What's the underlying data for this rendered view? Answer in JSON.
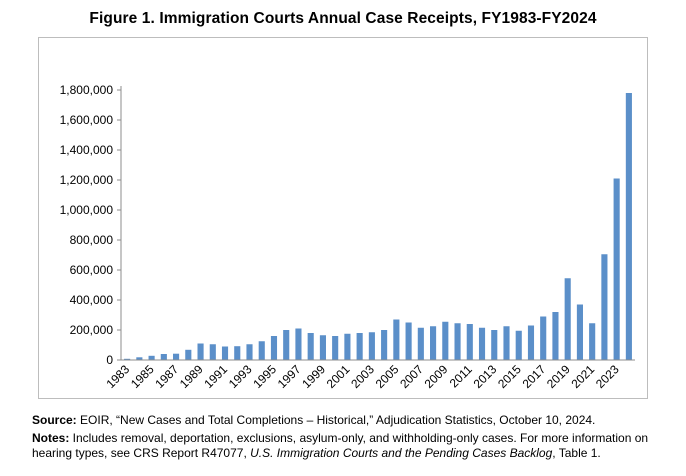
{
  "figure": {
    "title": "Figure 1. Immigration Courts Annual Case Receipts, FY1983-FY2024"
  },
  "chart_data": {
    "type": "bar",
    "title": "Figure 1. Immigration Courts Annual Case Receipts, FY1983-FY2024",
    "xlabel": "",
    "ylabel": "",
    "ylim": [
      0,
      1800000
    ],
    "yticks": [
      0,
      200000,
      400000,
      600000,
      800000,
      1000000,
      1200000,
      1400000,
      1600000,
      1800000
    ],
    "ytick_labels": [
      "0",
      "200,000",
      "400,000",
      "600,000",
      "800,000",
      "1,000,000",
      "1,200,000",
      "1,400,000",
      "1,600,000",
      "1,800,000"
    ],
    "categories": [
      "1983",
      "1984",
      "1985",
      "1986",
      "1987",
      "1988",
      "1989",
      "1990",
      "1991",
      "1992",
      "1993",
      "1994",
      "1995",
      "1996",
      "1997",
      "1998",
      "1999",
      "2000",
      "2001",
      "2002",
      "2003",
      "2004",
      "2005",
      "2006",
      "2007",
      "2008",
      "2009",
      "2010",
      "2011",
      "2012",
      "2013",
      "2014",
      "2015",
      "2016",
      "2017",
      "2018",
      "2019",
      "2020",
      "2021",
      "2022",
      "2023",
      "2024"
    ],
    "xtick_labels": [
      "1983",
      "1985",
      "1987",
      "1989",
      "1991",
      "1993",
      "1995",
      "1997",
      "1999",
      "2001",
      "2003",
      "2005",
      "2007",
      "2009",
      "2011",
      "2013",
      "2015",
      "2017",
      "2019",
      "2021",
      "2023"
    ],
    "values": [
      8000,
      18000,
      28000,
      40000,
      42000,
      68000,
      110000,
      105000,
      90000,
      92000,
      105000,
      125000,
      160000,
      200000,
      210000,
      180000,
      165000,
      160000,
      175000,
      180000,
      185000,
      200000,
      270000,
      250000,
      215000,
      225000,
      255000,
      245000,
      240000,
      215000,
      200000,
      225000,
      195000,
      230000,
      290000,
      320000,
      545000,
      370000,
      245000,
      705000,
      1210000,
      1780000
    ],
    "bar_color": "#5b8fc9",
    "grid": false,
    "legend": "none"
  },
  "notes": {
    "source_label": "Source:",
    "source_text": " EOIR, “New Cases and Total Completions – Historical,” Adjudication Statistics, October 10, 2024.",
    "notes_label": "Notes:",
    "notes_text": " Includes removal, deportation, exclusions, asylum-only, and withholding-only cases. For more information on hearing types, see CRS Report R47077, ",
    "notes_italic": "U.S. Immigration Courts and the Pending Cases Backlog",
    "notes_end": ", Table 1."
  }
}
